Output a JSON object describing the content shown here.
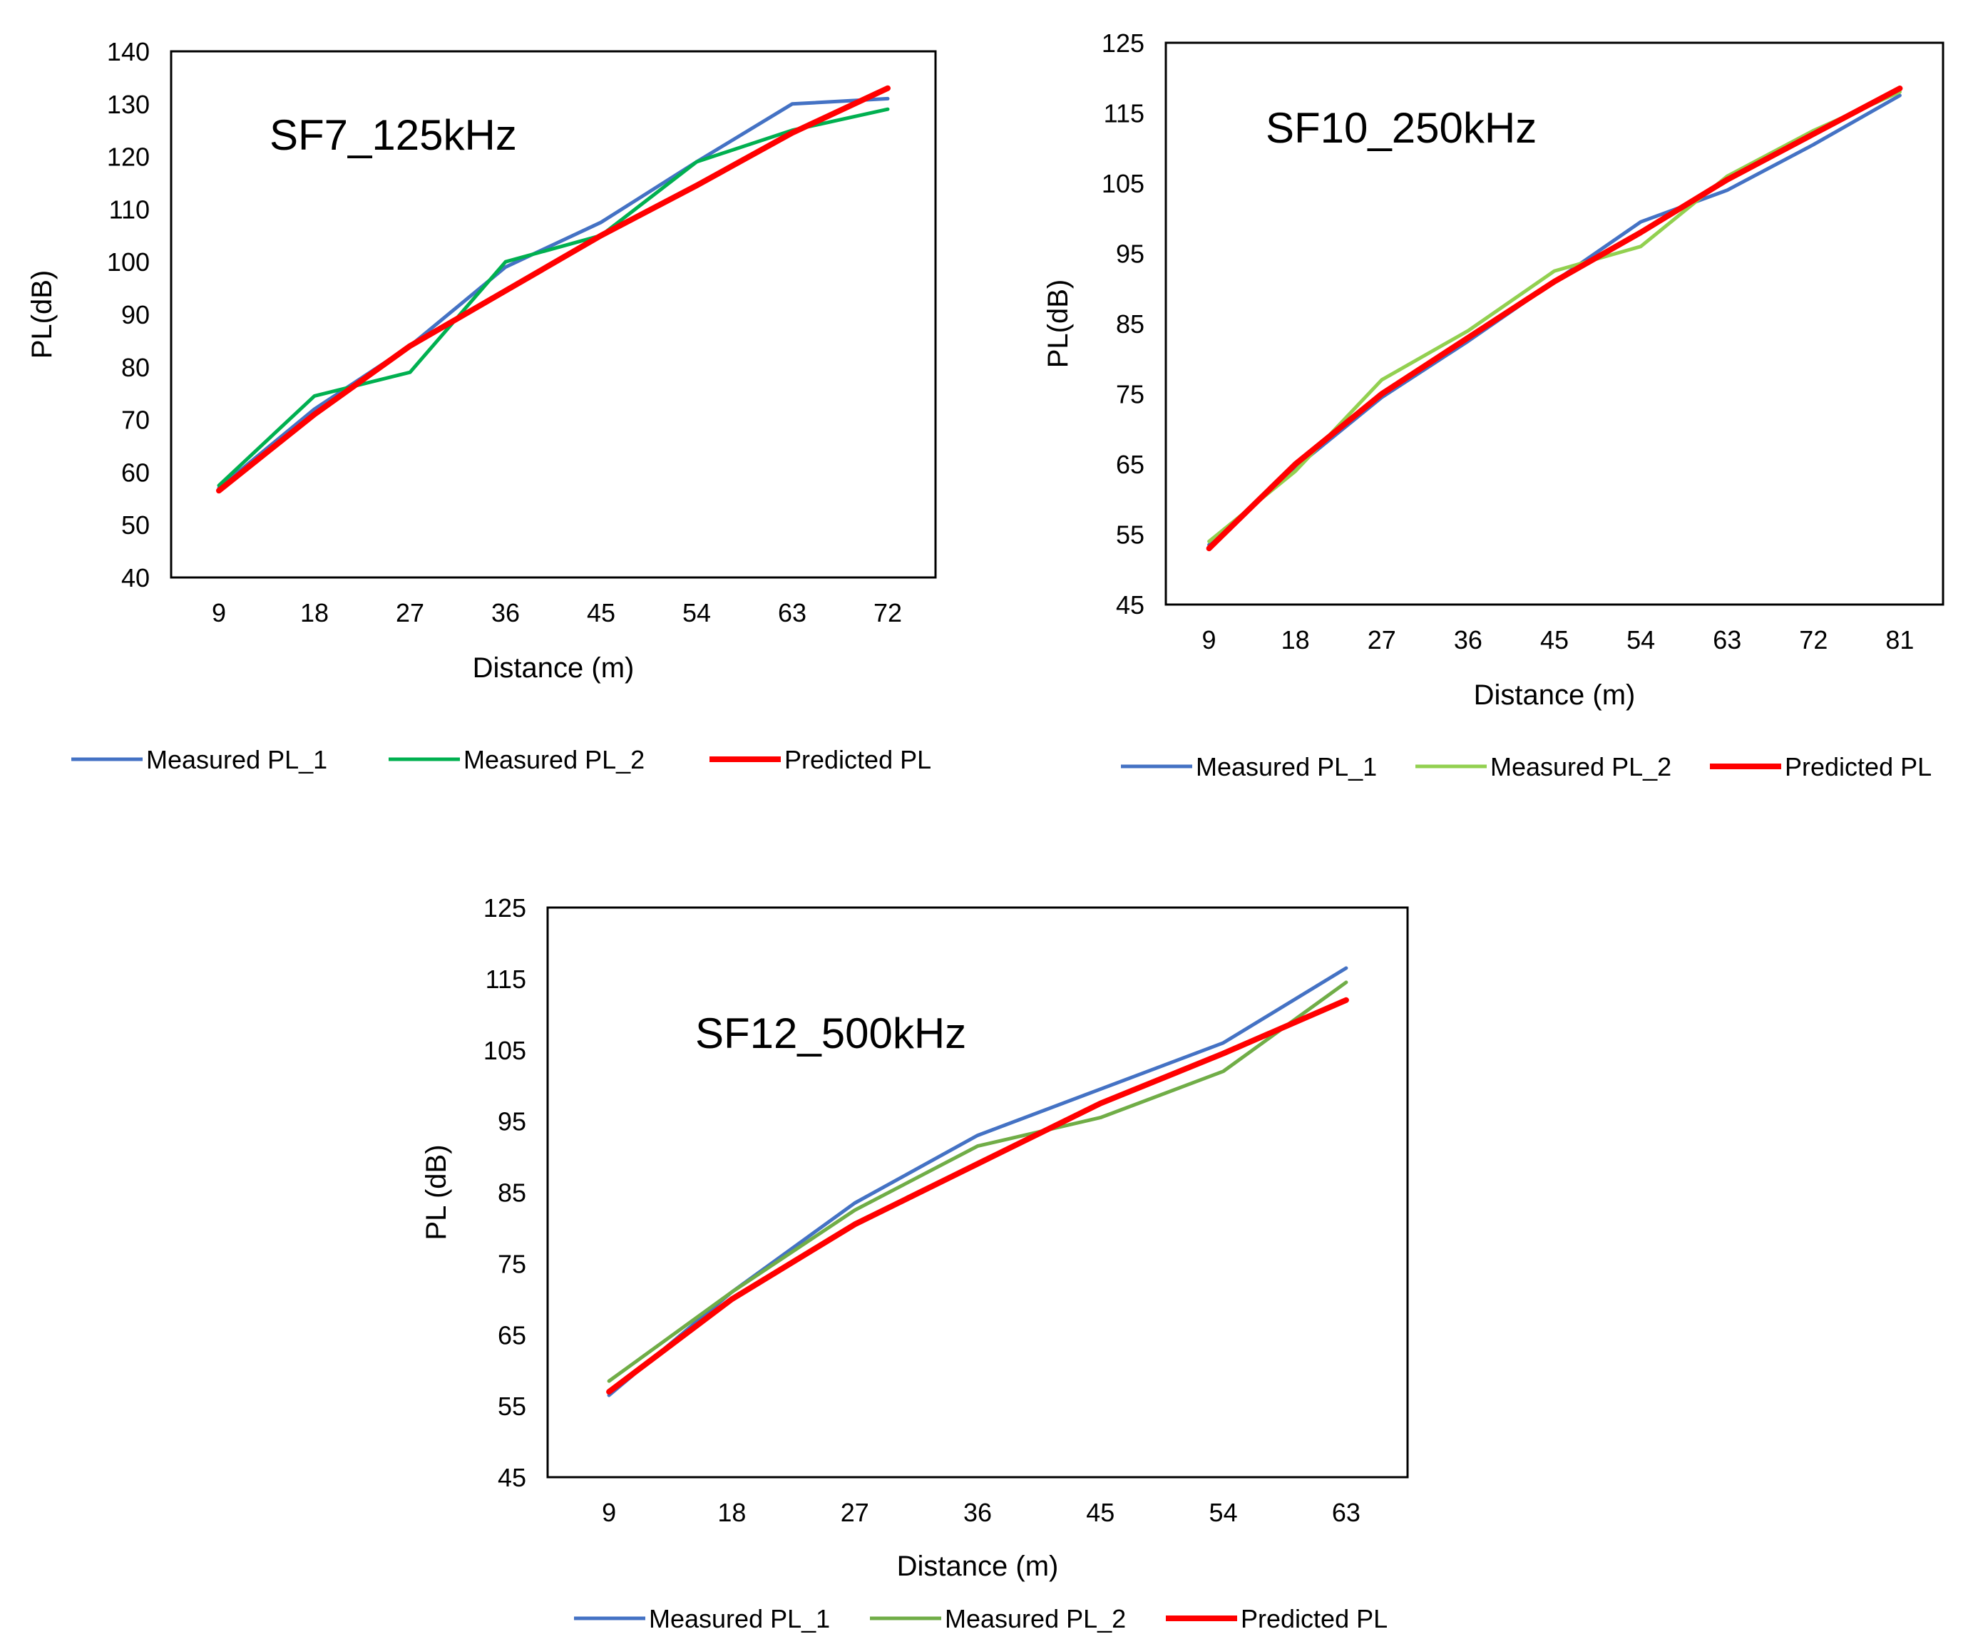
{
  "chart_data": [
    {
      "type": "line",
      "title": "SF7_125kHz",
      "xlabel": "Distance (m)",
      "ylabel": "PL(dB)",
      "x": [
        9,
        18,
        27,
        36,
        45,
        54,
        63,
        72
      ],
      "x_tick_labels": [
        "9",
        "18",
        "27",
        "36",
        "45",
        "54",
        "63",
        "72"
      ],
      "ylim": [
        40,
        140
      ],
      "y_ticks": [
        40,
        50,
        60,
        70,
        80,
        90,
        100,
        110,
        120,
        130,
        140
      ],
      "y_tick_labels": [
        "40",
        "50",
        "60",
        "70",
        "80",
        "90",
        "100",
        "110",
        "120",
        "130",
        "140"
      ],
      "grid": false,
      "legend_position": "bottom",
      "series": [
        {
          "name": "Measured PL_1",
          "color": "#4472C4",
          "values": [
            57,
            72,
            84,
            99,
            107.5,
            119,
            130,
            131
          ]
        },
        {
          "name": "Measured PL_2",
          "color": "#00B050",
          "values": [
            57.5,
            74.5,
            79,
            100,
            105,
            119,
            125,
            129
          ]
        },
        {
          "name": "Predicted  PL",
          "color": "#FF0000",
          "values": [
            56.5,
            71,
            84,
            94.5,
            105,
            114.5,
            124.5,
            133
          ]
        }
      ]
    },
    {
      "type": "line",
      "title": "SF10_250kHz",
      "xlabel": "Distance (m)",
      "ylabel": "PL(dB)",
      "x": [
        9,
        18,
        27,
        36,
        45,
        54,
        63,
        72,
        81
      ],
      "x_tick_labels": [
        "9",
        "18",
        "27",
        "36",
        "45",
        "54",
        "63",
        "72",
        "81"
      ],
      "ylim": [
        45,
        125
      ],
      "y_ticks": [
        45,
        55,
        65,
        75,
        85,
        95,
        105,
        115,
        125
      ],
      "y_tick_labels": [
        "45",
        "55",
        "65",
        "75",
        "85",
        "95",
        "105",
        "115",
        "125"
      ],
      "grid": false,
      "legend_position": "bottom",
      "series": [
        {
          "name": "Measured PL_1",
          "color": "#4472C4",
          "values": [
            53.5,
            64.5,
            74.5,
            82.5,
            91,
            99.5,
            104,
            110.5,
            117.5
          ]
        },
        {
          "name": "Measured PL_2",
          "color": "#92D050",
          "values": [
            54,
            64,
            77,
            84,
            92.5,
            96,
            106,
            112.5,
            118
          ]
        },
        {
          "name": "Predicted PL",
          "color": "#FF0000",
          "values": [
            53,
            65,
            75,
            83,
            91,
            98,
            105.5,
            112,
            118.5
          ]
        }
      ]
    },
    {
      "type": "line",
      "title": "SF12_500kHz",
      "xlabel": "Distance (m)",
      "ylabel": "PL (dB)",
      "x": [
        9,
        18,
        27,
        36,
        45,
        54,
        63
      ],
      "x_tick_labels": [
        "9",
        "18",
        "27",
        "36",
        "45",
        "54",
        "63"
      ],
      "ylim": [
        45,
        125
      ],
      "y_ticks": [
        45,
        55,
        65,
        75,
        85,
        95,
        105,
        115,
        125
      ],
      "y_tick_labels": [
        "45",
        "55",
        "65",
        "75",
        "85",
        "95",
        "105",
        "115",
        "125"
      ],
      "grid": false,
      "legend_position": "bottom",
      "series": [
        {
          "name": "Measured PL_1",
          "color": "#4472C4",
          "values": [
            56.5,
            71,
            83.5,
            93,
            99.5,
            106,
            116.5
          ]
        },
        {
          "name": "Measured PL_2",
          "color": "#70AD47",
          "values": [
            58.5,
            71,
            82.5,
            91.5,
            95.5,
            102,
            114.5
          ]
        },
        {
          "name": "Predicted  PL",
          "color": "#FF0000",
          "values": [
            57,
            70,
            80.5,
            89,
            97.5,
            104.5,
            112
          ]
        }
      ]
    }
  ]
}
